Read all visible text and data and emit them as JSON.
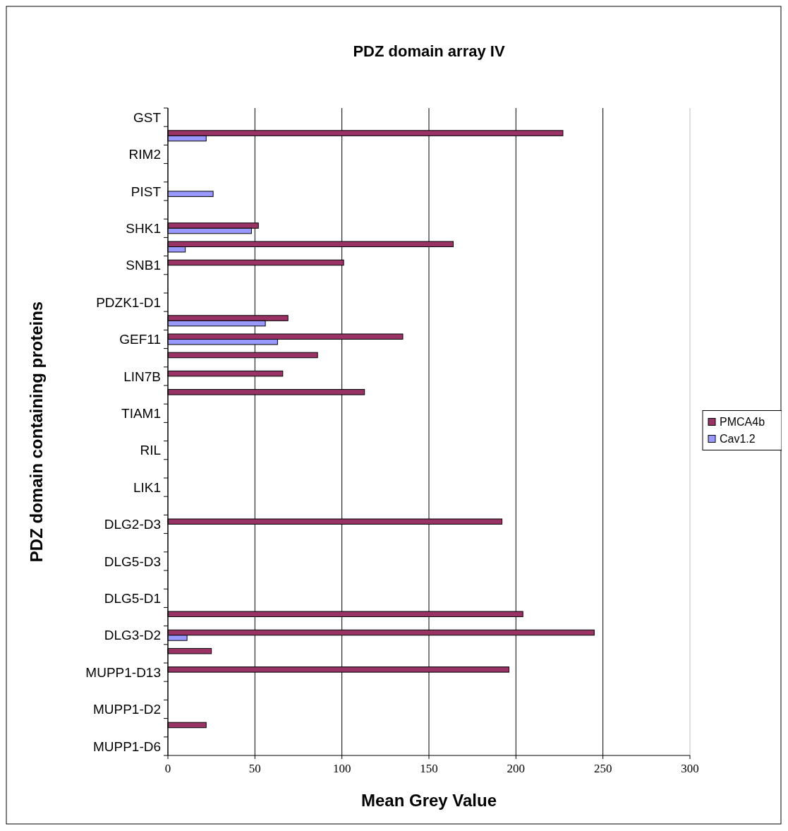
{
  "chart_data": {
    "type": "bar",
    "orientation": "horizontal",
    "title": "PDZ domain array IV",
    "xlabel": "Mean Grey Value",
    "ylabel": "PDZ domain containing proteins",
    "categories": [
      "GST",
      null,
      "RIM2",
      null,
      "PIST",
      null,
      "SHK1",
      null,
      "SNB1",
      null,
      "PDZK1-D1",
      null,
      "GEF11",
      null,
      "LIN7B",
      null,
      "TIAM1",
      null,
      "RIL",
      null,
      "LIK1",
      null,
      "DLG2-D3",
      null,
      "DLG5-D3",
      null,
      "DLG5-D1",
      null,
      "DLG3-D2",
      null,
      "MUPP1-D13",
      null,
      "MUPP1-D2",
      null,
      "MUPP1-D6"
    ],
    "series": [
      {
        "name": "PMCA4b",
        "color": "#993366",
        "values": [
          null,
          227,
          null,
          null,
          null,
          null,
          52,
          164,
          101,
          null,
          null,
          69,
          135,
          86,
          66,
          113,
          null,
          null,
          null,
          null,
          null,
          null,
          192,
          null,
          null,
          null,
          null,
          204,
          245,
          25,
          196,
          null,
          null,
          22,
          null
        ]
      },
      {
        "name": "Cav1.2",
        "color": "#9999ff",
        "values": [
          null,
          22,
          null,
          null,
          26,
          null,
          48,
          10,
          null,
          null,
          null,
          56,
          63,
          null,
          null,
          null,
          null,
          null,
          null,
          null,
          null,
          null,
          null,
          null,
          null,
          null,
          null,
          null,
          11,
          null,
          null,
          null,
          null,
          null,
          null
        ]
      }
    ],
    "xlim": [
      0,
      300
    ],
    "xticks": [
      0,
      50,
      100,
      150,
      200,
      250,
      300
    ],
    "grid": "x",
    "legend": "right"
  }
}
